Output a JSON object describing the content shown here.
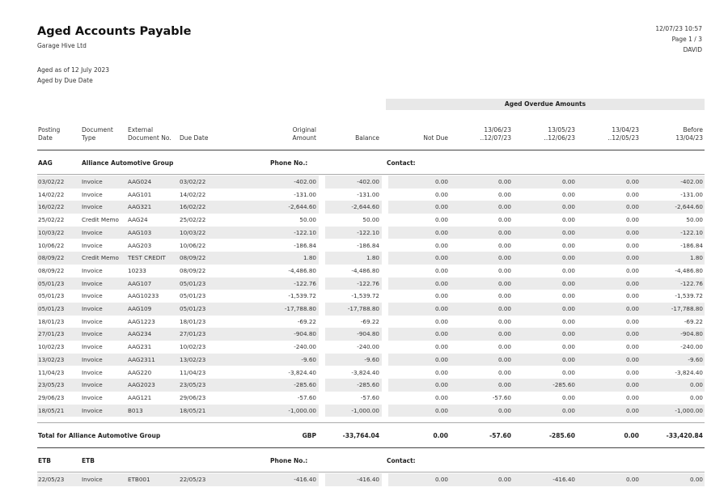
{
  "report": {
    "title": "Aged Accounts Payable",
    "company": "Garage Hive Ltd",
    "aged_as_of": "Aged as of 12 July 2023",
    "aged_by": "Aged by Due Date",
    "datetime": "12/07/23 10:57",
    "page": "Page 1 / 3",
    "user": "DAVID"
  },
  "band_label": "Aged Overdue Amounts",
  "columns": {
    "posting_date": [
      "Posting",
      "Date"
    ],
    "document_type": [
      "Document",
      "Type"
    ],
    "external_doc": [
      "External",
      "Document No."
    ],
    "due_date": "Due Date",
    "original_amount": [
      "Original",
      "Amount"
    ],
    "balance": "Balance",
    "not_due": "Not Due",
    "b1": [
      "13/06/23",
      "..12/07/23"
    ],
    "b2": [
      "13/05/23",
      "..12/06/23"
    ],
    "b3": [
      "13/04/23",
      "..12/05/23"
    ],
    "b4": [
      "Before",
      "13/04/23"
    ]
  },
  "labels": {
    "phone": "Phone No.:",
    "contact": "Contact:"
  },
  "groups": [
    {
      "code": "AAG",
      "name": "Alliance Automotive Group",
      "rows": [
        [
          "03/02/22",
          "Invoice",
          "AAG024",
          "03/02/22",
          "-402.00",
          "-402.00",
          "0.00",
          "0.00",
          "0.00",
          "0.00",
          "-402.00"
        ],
        [
          "14/02/22",
          "Invoice",
          "AAG101",
          "14/02/22",
          "-131.00",
          "-131.00",
          "0.00",
          "0.00",
          "0.00",
          "0.00",
          "-131.00"
        ],
        [
          "16/02/22",
          "Invoice",
          "AAG321",
          "16/02/22",
          "-2,644.60",
          "-2,644.60",
          "0.00",
          "0.00",
          "0.00",
          "0.00",
          "-2,644.60"
        ],
        [
          "25/02/22",
          "Credit Memo",
          "AAG24",
          "25/02/22",
          "50.00",
          "50.00",
          "0.00",
          "0.00",
          "0.00",
          "0.00",
          "50.00"
        ],
        [
          "10/03/22",
          "Invoice",
          "AAG103",
          "10/03/22",
          "-122.10",
          "-122.10",
          "0.00",
          "0.00",
          "0.00",
          "0.00",
          "-122.10"
        ],
        [
          "10/06/22",
          "Invoice",
          "AAG203",
          "10/06/22",
          "-186.84",
          "-186.84",
          "0.00",
          "0.00",
          "0.00",
          "0.00",
          "-186.84"
        ],
        [
          "08/09/22",
          "Credit Memo",
          "TEST CREDIT",
          "08/09/22",
          "1.80",
          "1.80",
          "0.00",
          "0.00",
          "0.00",
          "0.00",
          "1.80"
        ],
        [
          "08/09/22",
          "Invoice",
          "10233",
          "08/09/22",
          "-4,486.80",
          "-4,486.80",
          "0.00",
          "0.00",
          "0.00",
          "0.00",
          "-4,486.80"
        ],
        [
          "05/01/23",
          "Invoice",
          "AAG107",
          "05/01/23",
          "-122.76",
          "-122.76",
          "0.00",
          "0.00",
          "0.00",
          "0.00",
          "-122.76"
        ],
        [
          "05/01/23",
          "Invoice",
          "AAG10233",
          "05/01/23",
          "-1,539.72",
          "-1,539.72",
          "0.00",
          "0.00",
          "0.00",
          "0.00",
          "-1,539.72"
        ],
        [
          "05/01/23",
          "Invoice",
          "AAG109",
          "05/01/23",
          "-17,788.80",
          "-17,788.80",
          "0.00",
          "0.00",
          "0.00",
          "0.00",
          "-17,788.80"
        ],
        [
          "18/01/23",
          "Invoice",
          "AAG1223",
          "18/01/23",
          "-69.22",
          "-69.22",
          "0.00",
          "0.00",
          "0.00",
          "0.00",
          "-69.22"
        ],
        [
          "27/01/23",
          "Invoice",
          "AAG234",
          "27/01/23",
          "-904.80",
          "-904.80",
          "0.00",
          "0.00",
          "0.00",
          "0.00",
          "-904.80"
        ],
        [
          "10/02/23",
          "Invoice",
          "AAG231",
          "10/02/23",
          "-240.00",
          "-240.00",
          "0.00",
          "0.00",
          "0.00",
          "0.00",
          "-240.00"
        ],
        [
          "13/02/23",
          "Invoice",
          "AAG2311",
          "13/02/23",
          "-9.60",
          "-9.60",
          "0.00",
          "0.00",
          "0.00",
          "0.00",
          "-9.60"
        ],
        [
          "11/04/23",
          "Invoice",
          "AAG220",
          "11/04/23",
          "-3,824.40",
          "-3,824.40",
          "0.00",
          "0.00",
          "0.00",
          "0.00",
          "-3,824.40"
        ],
        [
          "23/05/23",
          "Invoice",
          "AAG2023",
          "23/05/23",
          "-285.60",
          "-285.60",
          "0.00",
          "0.00",
          "-285.60",
          "0.00",
          "0.00"
        ],
        [
          "29/06/23",
          "Invoice",
          "AAG121",
          "29/06/23",
          "-57.60",
          "-57.60",
          "0.00",
          "-57.60",
          "0.00",
          "0.00",
          "0.00"
        ],
        [
          "18/05/21",
          "Invoice",
          "B013",
          "18/05/21",
          "-1,000.00",
          "-1,000.00",
          "0.00",
          "0.00",
          "0.00",
          "0.00",
          "-1,000.00"
        ]
      ],
      "total": {
        "label": "Total for Alliance Automotive Group",
        "currency": "GBP",
        "balance": "-33,764.04",
        "not_due": "0.00",
        "b1": "-57.60",
        "b2": "-285.60",
        "b3": "0.00",
        "b4": "-33,420.84"
      }
    },
    {
      "code": "ETB",
      "name": "ETB",
      "rows": [
        [
          "22/05/23",
          "Invoice",
          "ETB001",
          "22/05/23",
          "-416.40",
          "-416.40",
          "0.00",
          "0.00",
          "-416.40",
          "0.00",
          "0.00"
        ]
      ]
    }
  ]
}
